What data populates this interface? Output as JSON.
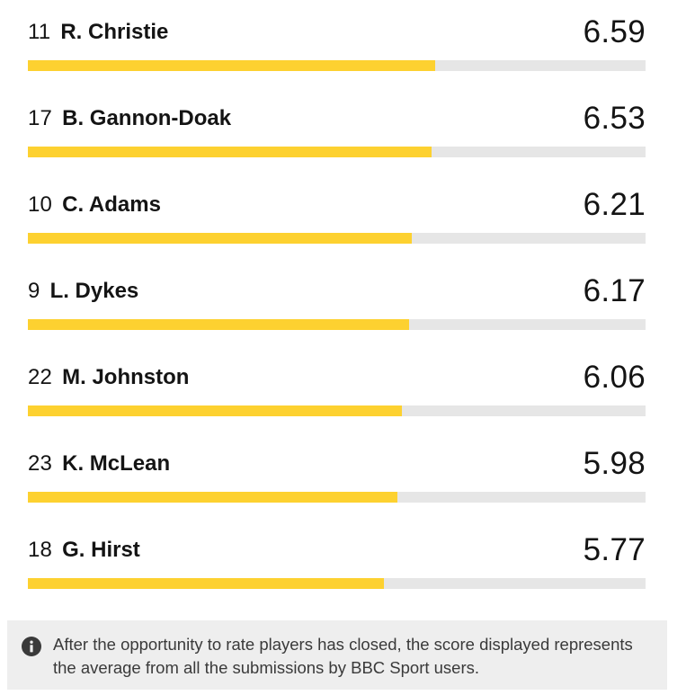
{
  "scale_max": 10,
  "colors": {
    "bar_fill": "#fdd130",
    "bar_track": "#e6e6e6",
    "info_background": "#eeeeee"
  },
  "players": [
    {
      "number": "11",
      "name": "R. Christie",
      "score": "6.59",
      "value": 6.59
    },
    {
      "number": "17",
      "name": "B. Gannon-Doak",
      "score": "6.53",
      "value": 6.53
    },
    {
      "number": "10",
      "name": "C. Adams",
      "score": "6.21",
      "value": 6.21
    },
    {
      "number": "9",
      "name": "L. Dykes",
      "score": "6.17",
      "value": 6.17
    },
    {
      "number": "22",
      "name": "M. Johnston",
      "score": "6.06",
      "value": 6.06
    },
    {
      "number": "23",
      "name": "K. McLean",
      "score": "5.98",
      "value": 5.98
    },
    {
      "number": "18",
      "name": "G. Hirst",
      "score": "5.77",
      "value": 5.77
    }
  ],
  "info": {
    "icon": "info-icon",
    "text": "After the opportunity to rate players has closed, the score displayed represents the average from all the submissions by BBC Sport users."
  }
}
